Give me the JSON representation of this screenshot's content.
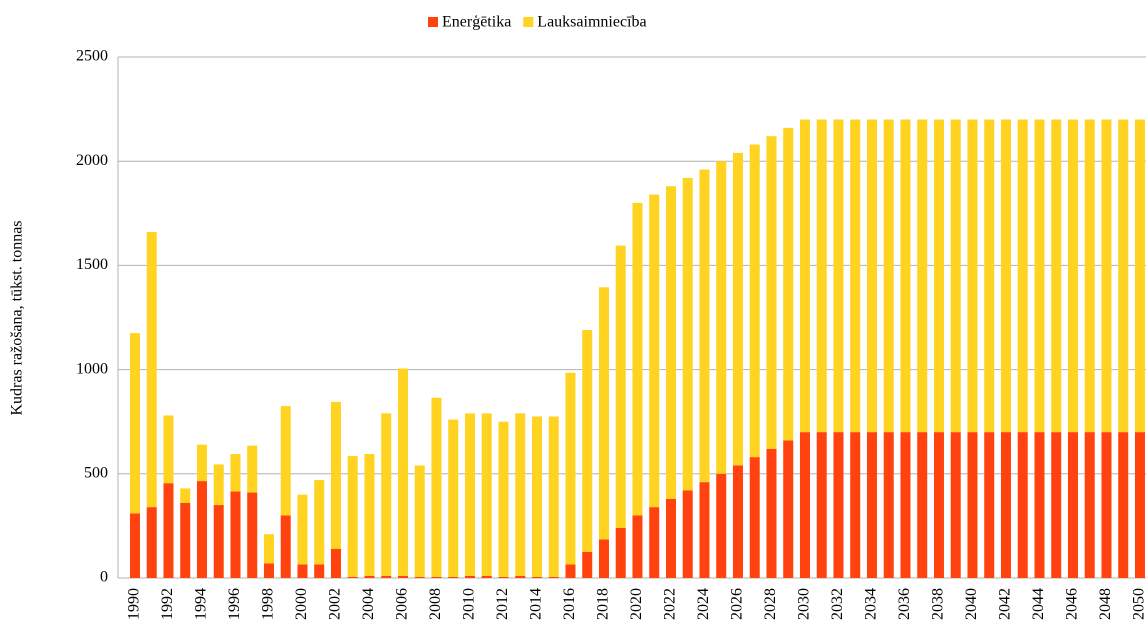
{
  "chart_data": {
    "type": "stacked_bar",
    "y_label": "Kudras ražošana, tūkst. tonnas",
    "categories": [
      "1990",
      null,
      "1992",
      null,
      "1994",
      null,
      "1996",
      null,
      "1998",
      null,
      "2000",
      null,
      "2002",
      null,
      "2004",
      null,
      "2006",
      null,
      "2008",
      null,
      "2010",
      null,
      "2012",
      null,
      "2014",
      null,
      "2016",
      null,
      "2018",
      null,
      "2020",
      null,
      "2022",
      null,
      "2024",
      null,
      "2026",
      null,
      "2028",
      null,
      "2030",
      null,
      "2032",
      null,
      "2034",
      null,
      "2036",
      null,
      "2038",
      null,
      "2040",
      null,
      "2042",
      null,
      "2044",
      null,
      "2046",
      null,
      "2048",
      null,
      "2050"
    ],
    "series": [
      {
        "name": "Enerģētika",
        "color": "#ff420e",
        "values": [
          310,
          340,
          455,
          360,
          465,
          350,
          415,
          410,
          70,
          300,
          65,
          65,
          140,
          5,
          10,
          10,
          10,
          5,
          5,
          5,
          10,
          10,
          5,
          10,
          5,
          5,
          65,
          125,
          185,
          240,
          300,
          340,
          380,
          420,
          460,
          500,
          540,
          580,
          620,
          660,
          700,
          700,
          700,
          700,
          700,
          700,
          700,
          700,
          700,
          700,
          700,
          700,
          700,
          700,
          700,
          700,
          700,
          700,
          700,
          700,
          700
        ]
      },
      {
        "name": "Lauksaimniecība",
        "color": "#ffd320",
        "values": [
          865,
          1320,
          325,
          70,
          175,
          195,
          180,
          225,
          140,
          525,
          335,
          405,
          705,
          580,
          585,
          780,
          995,
          535,
          860,
          755,
          780,
          780,
          745,
          780,
          770,
          770,
          920,
          1065,
          1210,
          1355,
          1500,
          1500,
          1500,
          1500,
          1500,
          1500,
          1500,
          1500,
          1500,
          1500,
          1500,
          1500,
          1500,
          1500,
          1500,
          1500,
          1500,
          1500,
          1500,
          1500,
          1500,
          1500,
          1500,
          1500,
          1500,
          1500,
          1500,
          1500,
          1500,
          1500,
          1500
        ]
      }
    ],
    "ylim": [
      0,
      2500
    ],
    "yticks": [
      0,
      500,
      1000,
      1500,
      2000,
      2500
    ],
    "grid": true,
    "legend": "top"
  }
}
